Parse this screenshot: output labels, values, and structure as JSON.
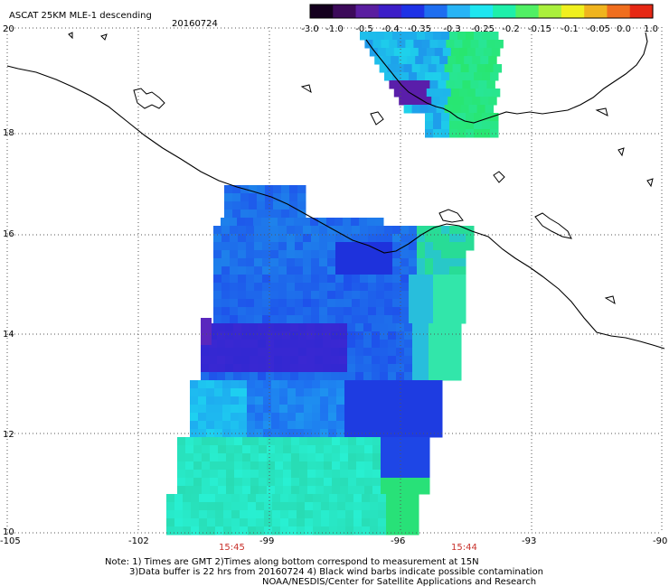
{
  "header": {
    "title": "ASCAT 25KM MLE-1 descending",
    "date": "20160724"
  },
  "colorbar": {
    "labels": [
      "-3.0",
      "-1.0",
      "-0.5",
      "-0.4",
      "-0.35",
      "-0.3",
      "-0.25",
      "-0.2",
      "-0.15",
      "-0.1",
      "-0.05",
      "0.0",
      "1.0"
    ],
    "colors": [
      "#14001e",
      "#3c0a5a",
      "#5a1ea0",
      "#3c1ec8",
      "#1e32e6",
      "#1e6ef0",
      "#28b4f5",
      "#1ee6f0",
      "#1ef0aa",
      "#50f064",
      "#aaf03c",
      "#f0f01e",
      "#f0b41e",
      "#f06e1e",
      "#e62814"
    ]
  },
  "axes": {
    "lon_labels": [
      "-105",
      "-102",
      "-99",
      "-96",
      "-93",
      "-90"
    ],
    "lat_labels": [
      "20",
      "18",
      "16",
      "14",
      "12",
      "10"
    ]
  },
  "times": {
    "left": "15:45",
    "right": "15:44"
  },
  "footer": {
    "line1": "Note: 1) Times are GMT 2)Times along bottom correspond to measurement at 15N",
    "line2": "3)Data buffer is 22 hrs from 20160724 4) Black wind barbs indicate possible contamination",
    "line3": "NOAA/NESDIS/Center for Satellite Applications and Research"
  }
}
